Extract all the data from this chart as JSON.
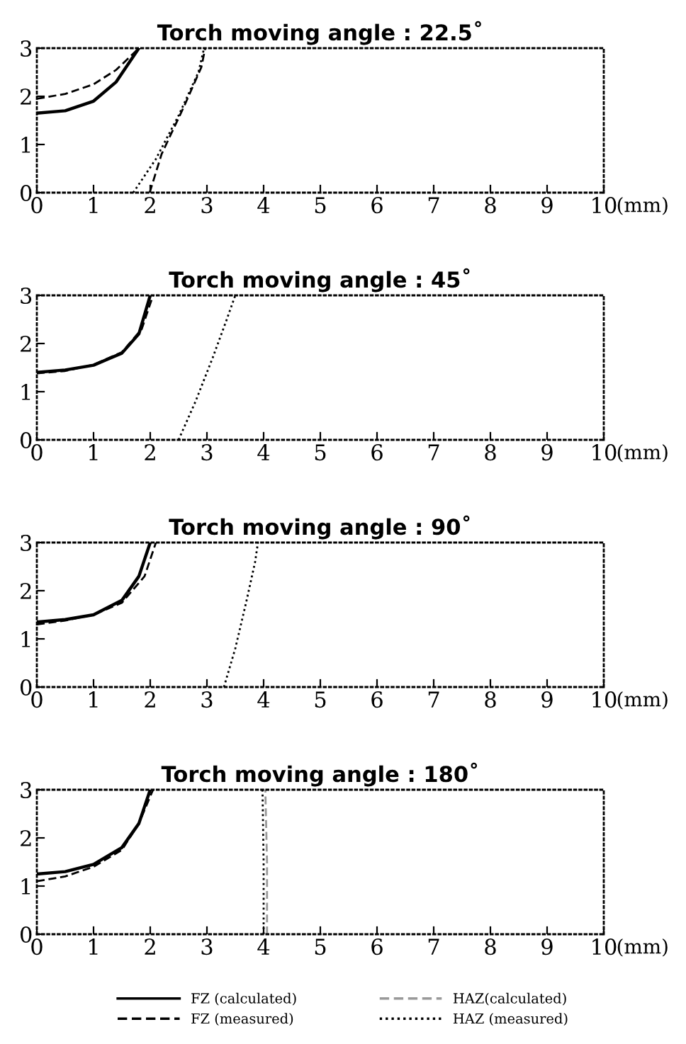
{
  "chart_data": [
    {
      "type": "line",
      "title": "Torch moving angle : 22.5˚",
      "xlabel": "(mm)",
      "xlim": [
        0,
        10
      ],
      "ylim": [
        0,
        3
      ],
      "xticks": [
        0,
        1,
        2,
        3,
        4,
        5,
        6,
        7,
        8,
        9,
        10
      ],
      "yticks": [
        0,
        1,
        2,
        3
      ],
      "grid": false,
      "legend": false,
      "series": [
        {
          "color": "#000000",
          "line_style": "solid",
          "x": [
            0,
            0.5,
            1,
            1.4,
            1.8
          ],
          "values": [
            1.65,
            1.7,
            1.9,
            2.3,
            3.0
          ]
        },
        {
          "color": "#000000",
          "line_style": "dashed",
          "x": [
            0,
            0.5,
            1,
            1.4,
            1.8
          ],
          "values": [
            1.95,
            2.05,
            2.25,
            2.55,
            3.0
          ]
        },
        {
          "color": "#000000",
          "line_style": "dashed",
          "x": [
            1.99,
            2.2,
            2.6,
            2.9,
            2.97
          ],
          "values": [
            0,
            0.8,
            1.8,
            2.6,
            3.0
          ]
        },
        {
          "color": "#000000",
          "line_style": "dotted",
          "x": [
            1.7,
            2.1,
            2.5,
            2.85,
            2.95
          ],
          "values": [
            0,
            0.7,
            1.6,
            2.5,
            3.0
          ]
        }
      ]
    },
    {
      "type": "line",
      "title": "Torch moving angle : 45˚",
      "xlabel": "(mm)",
      "xlim": [
        0,
        10
      ],
      "ylim": [
        0,
        3
      ],
      "xticks": [
        0,
        1,
        2,
        3,
        4,
        5,
        6,
        7,
        8,
        9,
        10
      ],
      "yticks": [
        0,
        1,
        2,
        3
      ],
      "grid": false,
      "legend": false,
      "series": [
        {
          "color": "#000000",
          "line_style": "solid",
          "x": [
            0,
            0.5,
            1,
            1.5,
            1.8,
            2.0
          ],
          "values": [
            1.4,
            1.45,
            1.55,
            1.8,
            2.2,
            3.0
          ]
        },
        {
          "color": "#000000",
          "line_style": "dashed",
          "x": [
            0,
            0.5,
            1,
            1.5,
            1.85,
            2.05
          ],
          "values": [
            1.38,
            1.43,
            1.56,
            1.82,
            2.3,
            3.0
          ]
        },
        {
          "color": "#000000",
          "line_style": "dotted",
          "x": [
            2.5,
            2.8,
            3.1,
            3.35,
            3.5
          ],
          "values": [
            0,
            0.8,
            1.7,
            2.5,
            3.0
          ]
        }
      ]
    },
    {
      "type": "line",
      "title": "Torch moving angle : 90˚",
      "xlabel": "(mm)",
      "xlim": [
        0,
        10
      ],
      "ylim": [
        0,
        3
      ],
      "xticks": [
        0,
        1,
        2,
        3,
        4,
        5,
        6,
        7,
        8,
        9,
        10
      ],
      "yticks": [
        0,
        1,
        2,
        3
      ],
      "grid": false,
      "legend": false,
      "series": [
        {
          "color": "#000000",
          "line_style": "solid",
          "x": [
            0,
            0.5,
            1,
            1.5,
            1.8,
            2.0
          ],
          "values": [
            1.35,
            1.4,
            1.5,
            1.8,
            2.3,
            3.0
          ]
        },
        {
          "color": "#000000",
          "line_style": "dashed",
          "x": [
            0,
            0.5,
            1,
            1.5,
            1.9,
            2.1
          ],
          "values": [
            1.3,
            1.38,
            1.5,
            1.75,
            2.3,
            3.0
          ]
        },
        {
          "color": "#000000",
          "line_style": "dotted",
          "x": [
            3.3,
            3.5,
            3.7,
            3.85,
            3.9
          ],
          "values": [
            0,
            0.8,
            1.8,
            2.6,
            3.0
          ]
        }
      ]
    },
    {
      "type": "line",
      "title": "Torch moving angle : 180˚",
      "xlabel": "(mm)",
      "xlim": [
        0,
        10
      ],
      "ylim": [
        0,
        3
      ],
      "xticks": [
        0,
        1,
        2,
        3,
        4,
        5,
        6,
        7,
        8,
        9,
        10
      ],
      "yticks": [
        0,
        1,
        2,
        3
      ],
      "grid": false,
      "legend": "bottom",
      "series": [
        {
          "name": "FZ (calculated)",
          "color": "#000000",
          "line_style": "solid",
          "x": [
            0,
            0.5,
            1,
            1.5,
            1.8,
            2.0
          ],
          "values": [
            1.25,
            1.3,
            1.45,
            1.8,
            2.3,
            3.0
          ]
        },
        {
          "name": "FZ (measured)",
          "color": "#000000",
          "line_style": "dashed",
          "x": [
            0,
            0.5,
            1,
            1.5,
            1.8,
            2.05
          ],
          "values": [
            1.1,
            1.2,
            1.4,
            1.75,
            2.3,
            3.0
          ]
        },
        {
          "name": "HAZ(calculated)",
          "color": "#999999",
          "line_style": "dashed",
          "x": [
            4.06,
            4.06,
            4.03
          ],
          "values": [
            0,
            1.5,
            3.0
          ]
        },
        {
          "name": "HAZ (measured)",
          "color": "#000000",
          "line_style": "dotted",
          "x": [
            4.0,
            4.0,
            3.98
          ],
          "values": [
            0,
            1.5,
            3.0
          ]
        }
      ]
    }
  ]
}
